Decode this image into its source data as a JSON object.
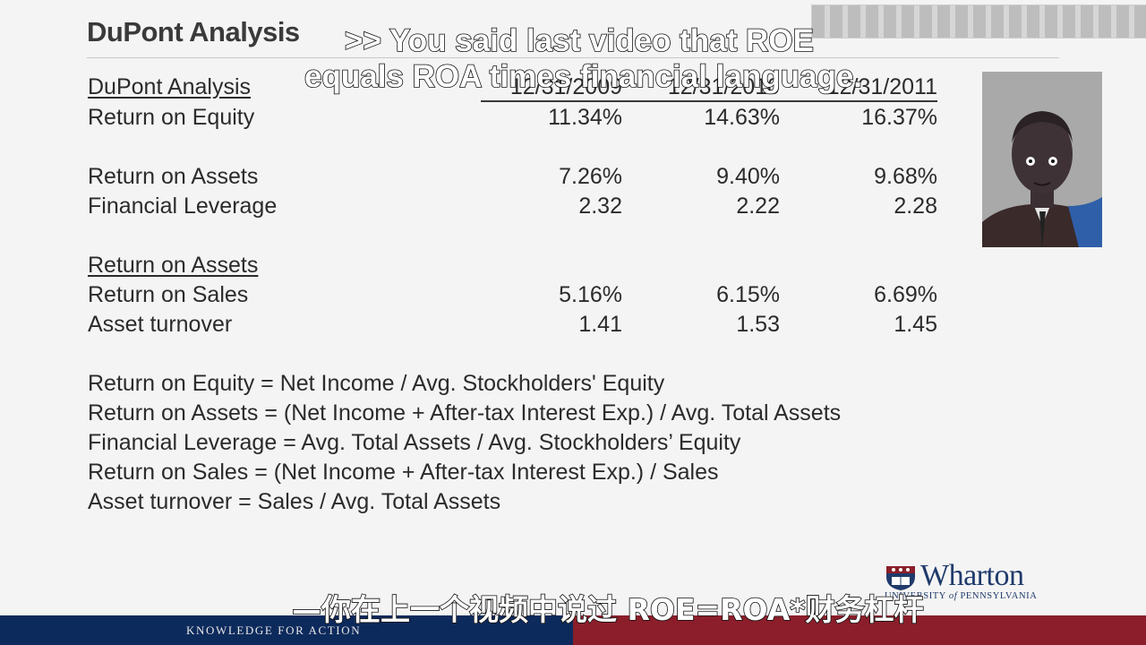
{
  "slide": {
    "title": "DuPont Analysis"
  },
  "table": {
    "header_label": "DuPont Analysis",
    "columns": [
      "12/31/2009",
      "12/31/2010",
      "12/31/2011"
    ],
    "rows": [
      {
        "label": "Return on Equity",
        "values": [
          "11.34%",
          "14.63%",
          "16.37%"
        ]
      },
      {
        "label": "Return on Assets",
        "values": [
          "7.26%",
          "9.40%",
          "9.68%"
        ]
      },
      {
        "label": "Financial Leverage",
        "values": [
          "2.32",
          "2.22",
          "2.28"
        ]
      },
      {
        "label": "Return on Assets"
      },
      {
        "label": "Return on Sales",
        "values": [
          "5.16%",
          "6.15%",
          "6.69%"
        ]
      },
      {
        "label": "Asset turnover",
        "values": [
          "1.41",
          "1.53",
          "1.45"
        ]
      }
    ]
  },
  "formulas": [
    "Return on Equity = Net Income / Avg. Stockholders' Equity",
    "Return on Assets = (Net Income + After-tax Interest Exp.) / Avg. Total Assets",
    "Financial Leverage = Avg. Total Assets / Avg. Stockholders’ Equity",
    "Return on Sales =  (Net Income + After-tax Interest Exp.) / Sales",
    "Asset turnover = Sales / Avg. Total Assets"
  ],
  "captions": {
    "english_line1": ">> You said last video that ROE",
    "english_line2": "equals ROA times financial language.",
    "chinese": "—你在上一个视频中说过 ROE=ROA*财务杠杆"
  },
  "logo": {
    "name": "Wharton",
    "subtitle_prefix": "UNIVERSITY ",
    "subtitle_of": "of",
    "subtitle_suffix": " PENNSYLVANIA"
  },
  "footer": {
    "tagline": "KNOWLEDGE FOR ACTION"
  },
  "colors": {
    "footer_blue": "#0d2a5c",
    "footer_red": "#8b1e2a",
    "logo_blue": "#1f3a6b"
  }
}
